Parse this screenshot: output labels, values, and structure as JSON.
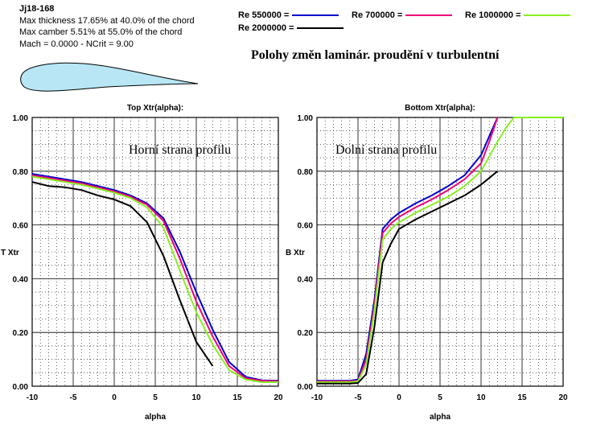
{
  "header": {
    "foil_name": "Jj18-168",
    "info_lines": [
      "Max thickness 17.65% at 40.0% of the chord",
      "Max camber 5.51% at 55.0% of the chord",
      "Mach = 0.0000 - NCrit = 9.00"
    ],
    "main_title": "Polohy změn laminár. proudění v turbulentní"
  },
  "legend": [
    {
      "label": "Re 550000 =",
      "color": "#0000cc"
    },
    {
      "label": "Re 700000 =",
      "color": "#ee0077"
    },
    {
      "label": "Re 1000000 =",
      "color": "#88ee22"
    },
    {
      "label": "Re 2000000 =",
      "color": "#000000"
    }
  ],
  "colors": {
    "airfoil_fill": "#b8e6f4",
    "grid": "#000000"
  },
  "chart_data": [
    {
      "type": "line",
      "title": "Top Xtr(alpha):",
      "xlabel": "alpha",
      "ylabel": "T Xtr",
      "annotation": "Horní strana profilu",
      "xlim": [
        -10,
        20
      ],
      "ylim": [
        0,
        1
      ],
      "x_ticks": [
        "-10",
        "-5",
        "0",
        "5",
        "10",
        "15",
        "20"
      ],
      "y_ticks": [
        "0.00",
        "0.20",
        "0.40",
        "0.60",
        "0.80",
        "1.00"
      ],
      "grid": true,
      "series": [
        {
          "name": "Re 550000",
          "color": "#0000cc",
          "points": [
            [
              -10,
              0.79
            ],
            [
              -8,
              0.78
            ],
            [
              -6,
              0.77
            ],
            [
              -4,
              0.76
            ],
            [
              -2,
              0.745
            ],
            [
              0,
              0.73
            ],
            [
              2,
              0.71
            ],
            [
              4,
              0.68
            ],
            [
              6,
              0.625
            ],
            [
              8,
              0.5
            ],
            [
              10,
              0.35
            ],
            [
              12,
              0.21
            ],
            [
              14,
              0.09
            ],
            [
              16,
              0.035
            ],
            [
              18,
              0.022
            ],
            [
              20,
              0.02
            ]
          ]
        },
        {
          "name": "Re 700000",
          "color": "#ee0077",
          "points": [
            [
              -10,
              0.785
            ],
            [
              -8,
              0.775
            ],
            [
              -6,
              0.765
            ],
            [
              -4,
              0.755
            ],
            [
              -2,
              0.74
            ],
            [
              0,
              0.725
            ],
            [
              2,
              0.705
            ],
            [
              4,
              0.675
            ],
            [
              6,
              0.615
            ],
            [
              8,
              0.475
            ],
            [
              10,
              0.315
            ],
            [
              12,
              0.185
            ],
            [
              14,
              0.075
            ],
            [
              16,
              0.03
            ],
            [
              18,
              0.02
            ],
            [
              20,
              0.018
            ]
          ]
        },
        {
          "name": "Re 1000000",
          "color": "#88ee22",
          "points": [
            [
              -10,
              0.78
            ],
            [
              -8,
              0.77
            ],
            [
              -6,
              0.76
            ],
            [
              -4,
              0.75
            ],
            [
              -2,
              0.735
            ],
            [
              0,
              0.72
            ],
            [
              2,
              0.7
            ],
            [
              4,
              0.665
            ],
            [
              6,
              0.59
            ],
            [
              8,
              0.43
            ],
            [
              10,
              0.275
            ],
            [
              12,
              0.155
            ],
            [
              14,
              0.06
            ],
            [
              16,
              0.025
            ],
            [
              18,
              0.015
            ],
            [
              20,
              0.015
            ]
          ]
        },
        {
          "name": "Re 2000000",
          "color": "#000000",
          "points": [
            [
              -10,
              0.76
            ],
            [
              -8,
              0.745
            ],
            [
              -6,
              0.74
            ],
            [
              -4,
              0.73
            ],
            [
              -2,
              0.71
            ],
            [
              0,
              0.695
            ],
            [
              2,
              0.67
            ],
            [
              4,
              0.61
            ],
            [
              6,
              0.485
            ],
            [
              8,
              0.32
            ],
            [
              10,
              0.165
            ],
            [
              12,
              0.075
            ]
          ]
        }
      ]
    },
    {
      "type": "line",
      "title": "Bottom Xtr(alpha):",
      "xlabel": "alpha",
      "ylabel": "B Xtr",
      "annotation": "Dolní strana profilu",
      "xlim": [
        -10,
        20
      ],
      "ylim": [
        0,
        1
      ],
      "x_ticks": [
        "-10",
        "-5",
        "0",
        "5",
        "10",
        "15",
        "20"
      ],
      "y_ticks": [
        "0.00",
        "0.20",
        "0.40",
        "0.60",
        "0.80",
        "1.00"
      ],
      "grid": true,
      "series": [
        {
          "name": "Re 550000",
          "color": "#0000cc",
          "points": [
            [
              -10,
              0.02
            ],
            [
              -8,
              0.02
            ],
            [
              -6,
              0.02
            ],
            [
              -5,
              0.025
            ],
            [
              -4,
              0.12
            ],
            [
              -3,
              0.32
            ],
            [
              -2,
              0.585
            ],
            [
              -1,
              0.62
            ],
            [
              0,
              0.645
            ],
            [
              2,
              0.68
            ],
            [
              4,
              0.71
            ],
            [
              6,
              0.745
            ],
            [
              8,
              0.785
            ],
            [
              10,
              0.86
            ],
            [
              11,
              0.93
            ],
            [
              12,
              1.0
            ]
          ]
        },
        {
          "name": "Re 700000",
          "color": "#ee0077",
          "points": [
            [
              -10,
              0.018
            ],
            [
              -8,
              0.018
            ],
            [
              -6,
              0.018
            ],
            [
              -5,
              0.02
            ],
            [
              -4,
              0.1
            ],
            [
              -3,
              0.3
            ],
            [
              -2,
              0.57
            ],
            [
              -1,
              0.605
            ],
            [
              0,
              0.63
            ],
            [
              2,
              0.665
            ],
            [
              4,
              0.695
            ],
            [
              6,
              0.73
            ],
            [
              8,
              0.77
            ],
            [
              10,
              0.83
            ],
            [
              11,
              0.91
            ],
            [
              12,
              1.0
            ]
          ]
        },
        {
          "name": "Re 1000000",
          "color": "#88ee22",
          "points": [
            [
              -10,
              0.015
            ],
            [
              -8,
              0.015
            ],
            [
              -6,
              0.015
            ],
            [
              -5,
              0.018
            ],
            [
              -4,
              0.08
            ],
            [
              -3,
              0.28
            ],
            [
              -2,
              0.545
            ],
            [
              -1,
              0.585
            ],
            [
              0,
              0.61
            ],
            [
              2,
              0.645
            ],
            [
              4,
              0.675
            ],
            [
              6,
              0.705
            ],
            [
              8,
              0.745
            ],
            [
              10,
              0.8
            ],
            [
              12,
              0.91
            ],
            [
              13,
              0.96
            ],
            [
              14,
              1.0
            ],
            [
              16,
              1.0
            ],
            [
              18,
              1.0
            ],
            [
              20,
              1.0
            ]
          ]
        },
        {
          "name": "Re 2000000",
          "color": "#000000",
          "points": [
            [
              -10,
              0.01
            ],
            [
              -8,
              0.01
            ],
            [
              -6,
              0.01
            ],
            [
              -5,
              0.012
            ],
            [
              -4,
              0.045
            ],
            [
              -3,
              0.22
            ],
            [
              -2,
              0.46
            ],
            [
              -1,
              0.53
            ],
            [
              0,
              0.585
            ],
            [
              2,
              0.62
            ],
            [
              4,
              0.65
            ],
            [
              6,
              0.68
            ],
            [
              8,
              0.71
            ],
            [
              10,
              0.75
            ],
            [
              12,
              0.8
            ]
          ]
        }
      ]
    }
  ]
}
